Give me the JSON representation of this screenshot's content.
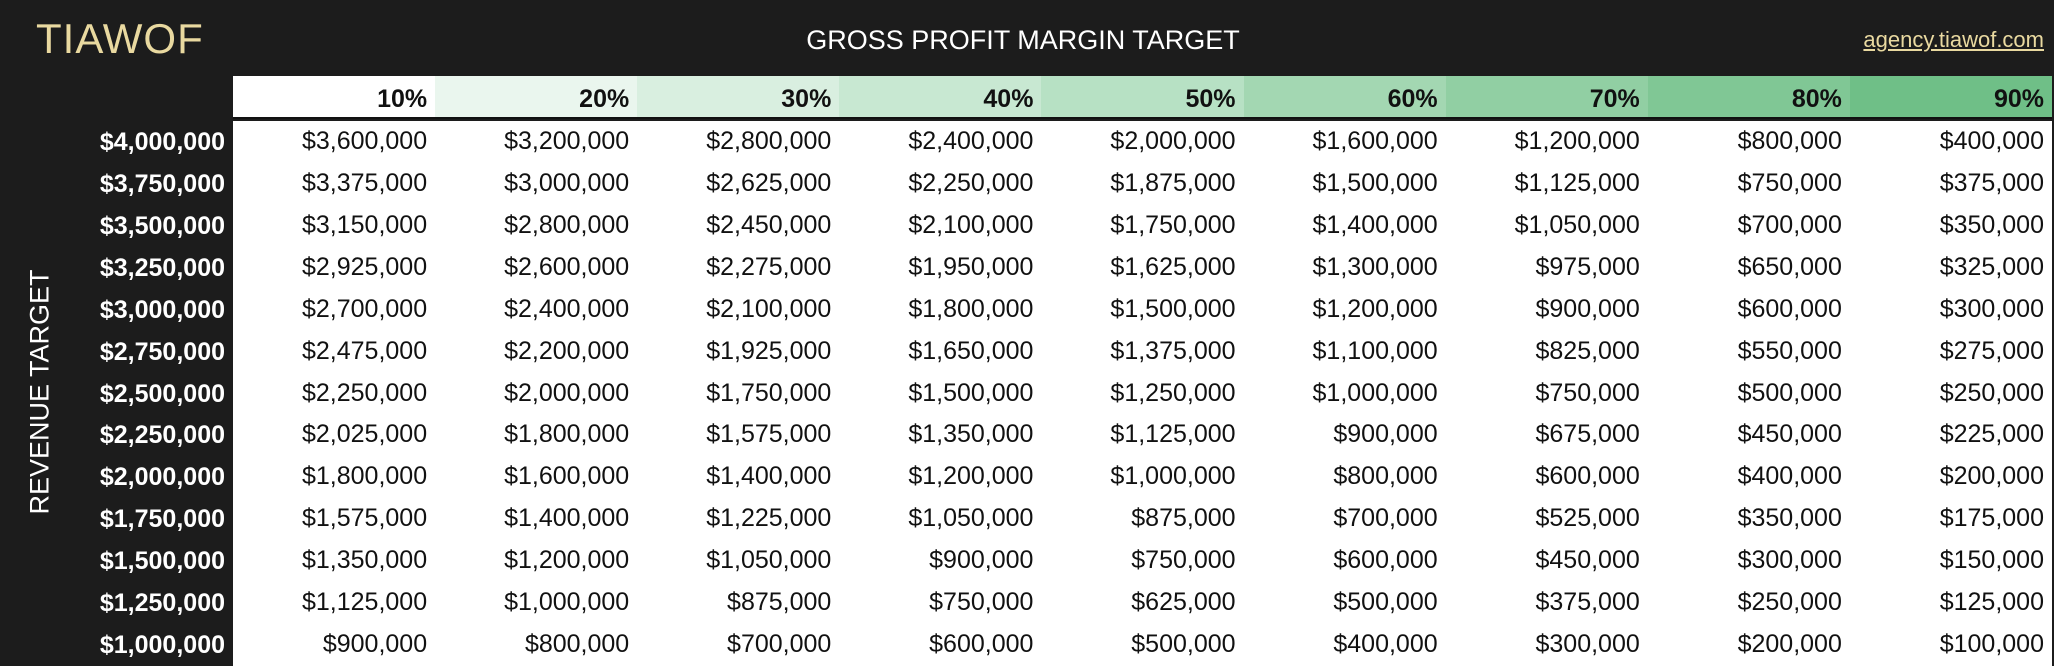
{
  "header": {
    "logo": "TIAWOF",
    "title": "GROSS PROFIT MARGIN TARGET",
    "link": "agency.tiawof.com"
  },
  "table": {
    "row_axis_label": "REVENUE TARGET",
    "columns": [
      {
        "label": "10%",
        "color": "#ffffff"
      },
      {
        "label": "20%",
        "color": "#eaf6ee"
      },
      {
        "label": "30%",
        "color": "#d9efe0"
      },
      {
        "label": "40%",
        "color": "#c8e8d2"
      },
      {
        "label": "50%",
        "color": "#b7e1c4"
      },
      {
        "label": "60%",
        "color": "#a3d7b2"
      },
      {
        "label": "70%",
        "color": "#91cfa3"
      },
      {
        "label": "80%",
        "color": "#80c795"
      },
      {
        "label": "90%",
        "color": "#6fbf87"
      }
    ],
    "rows": [
      {
        "label": "$4,000,000",
        "cells": [
          "$3,600,000",
          "$3,200,000",
          "$2,800,000",
          "$2,400,000",
          "$2,000,000",
          "$1,600,000",
          "$1,200,000",
          "$800,000",
          "$400,000"
        ]
      },
      {
        "label": "$3,750,000",
        "cells": [
          "$3,375,000",
          "$3,000,000",
          "$2,625,000",
          "$2,250,000",
          "$1,875,000",
          "$1,500,000",
          "$1,125,000",
          "$750,000",
          "$375,000"
        ]
      },
      {
        "label": "$3,500,000",
        "cells": [
          "$3,150,000",
          "$2,800,000",
          "$2,450,000",
          "$2,100,000",
          "$1,750,000",
          "$1,400,000",
          "$1,050,000",
          "$700,000",
          "$350,000"
        ]
      },
      {
        "label": "$3,250,000",
        "cells": [
          "$2,925,000",
          "$2,600,000",
          "$2,275,000",
          "$1,950,000",
          "$1,625,000",
          "$1,300,000",
          "$975,000",
          "$650,000",
          "$325,000"
        ]
      },
      {
        "label": "$3,000,000",
        "cells": [
          "$2,700,000",
          "$2,400,000",
          "$2,100,000",
          "$1,800,000",
          "$1,500,000",
          "$1,200,000",
          "$900,000",
          "$600,000",
          "$300,000"
        ]
      },
      {
        "label": "$2,750,000",
        "cells": [
          "$2,475,000",
          "$2,200,000",
          "$1,925,000",
          "$1,650,000",
          "$1,375,000",
          "$1,100,000",
          "$825,000",
          "$550,000",
          "$275,000"
        ]
      },
      {
        "label": "$2,500,000",
        "cells": [
          "$2,250,000",
          "$2,000,000",
          "$1,750,000",
          "$1,500,000",
          "$1,250,000",
          "$1,000,000",
          "$750,000",
          "$500,000",
          "$250,000"
        ]
      },
      {
        "label": "$2,250,000",
        "cells": [
          "$2,025,000",
          "$1,800,000",
          "$1,575,000",
          "$1,350,000",
          "$1,125,000",
          "$900,000",
          "$675,000",
          "$450,000",
          "$225,000"
        ]
      },
      {
        "label": "$2,000,000",
        "cells": [
          "$1,800,000",
          "$1,600,000",
          "$1,400,000",
          "$1,200,000",
          "$1,000,000",
          "$800,000",
          "$600,000",
          "$400,000",
          "$200,000"
        ]
      },
      {
        "label": "$1,750,000",
        "cells": [
          "$1,575,000",
          "$1,400,000",
          "$1,225,000",
          "$1,050,000",
          "$875,000",
          "$700,000",
          "$525,000",
          "$350,000",
          "$175,000"
        ]
      },
      {
        "label": "$1,500,000",
        "cells": [
          "$1,350,000",
          "$1,200,000",
          "$1,050,000",
          "$900,000",
          "$750,000",
          "$600,000",
          "$450,000",
          "$300,000",
          "$150,000"
        ]
      },
      {
        "label": "$1,250,000",
        "cells": [
          "$1,125,000",
          "$1,000,000",
          "$875,000",
          "$750,000",
          "$625,000",
          "$500,000",
          "$375,000",
          "$250,000",
          "$125,000"
        ]
      },
      {
        "label": "$1,000,000",
        "cells": [
          "$900,000",
          "$800,000",
          "$700,000",
          "$600,000",
          "$500,000",
          "$400,000",
          "$300,000",
          "$200,000",
          "$100,000"
        ]
      }
    ]
  }
}
